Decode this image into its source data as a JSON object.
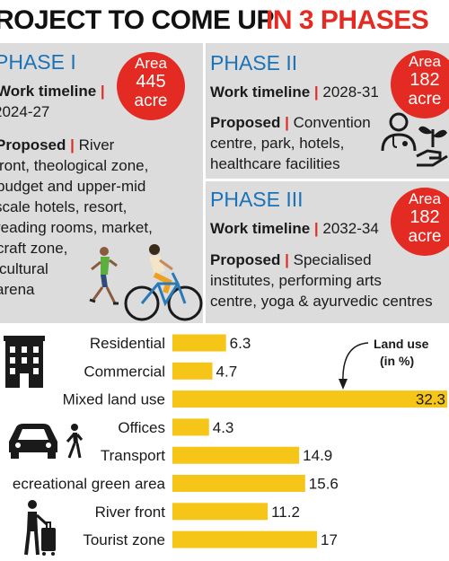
{
  "header": {
    "title_prefix": "ROJECT TO COME UP",
    "title_highlight": "IN 3 PHASES"
  },
  "phase1": {
    "name": "PHASE I",
    "timeline_label": "Work timeline",
    "timeline_sep": "|",
    "timeline_value": "2024-27",
    "area_label": "Area",
    "area_value": "445",
    "area_unit": "acre",
    "proposed_label": "Proposed",
    "proposed_lines": [
      "River",
      "ront, theological zone,",
      "budget and upper-mid",
      "scale hotels, resort,",
      "reading rooms, market,",
      "craft zone,",
      "cultural",
      "arena"
    ]
  },
  "phase2": {
    "name": "PHASE II",
    "timeline_label": "Work timeline",
    "timeline_value": "2028-31",
    "area_label": "Area",
    "area_value": "182",
    "area_unit": "acre",
    "proposed_label": "Proposed",
    "proposed_lines": [
      "Convention",
      "centre, park, hotels,",
      "healthcare facilities"
    ]
  },
  "phase3": {
    "name": "PHASE III",
    "timeline_label": "Work timeline",
    "timeline_value": "2032-34",
    "area_label": "Area",
    "area_value": "182",
    "area_unit": "acre",
    "proposed_label": "Proposed",
    "proposed_lines": [
      "Specialised",
      "institutes, performing arts",
      "centre, yoga & ayurvedic centres"
    ]
  },
  "colors": {
    "accent_red": "#e32b23",
    "phase_blue": "#1a73b8",
    "bar_yellow": "#f5c518",
    "panel_gray": "#dcdcdc"
  },
  "icons": [
    "cyclist-runner-illustration",
    "doctor-icon",
    "plant-hand-icon",
    "building-icon",
    "car-icon",
    "walking-person-icon",
    "traveler-luggage-icon"
  ],
  "chart_data": {
    "type": "bar",
    "orientation": "horizontal",
    "categories": [
      "Residential",
      "Commercial",
      "Mixed land use",
      "Offices",
      "Transport",
      "ecreational green area",
      "River front",
      "Tourist zone"
    ],
    "values": [
      6.3,
      4.7,
      32.3,
      4.3,
      14.9,
      15.6,
      11.2,
      17
    ],
    "value_labels": [
      "6.3",
      "4.7",
      "32.3",
      "4.3",
      "14.9",
      "15.6",
      "11.2",
      "17"
    ],
    "legend_lines": [
      "Land use",
      "(in %)"
    ],
    "xlim": [
      0,
      32.3
    ]
  }
}
